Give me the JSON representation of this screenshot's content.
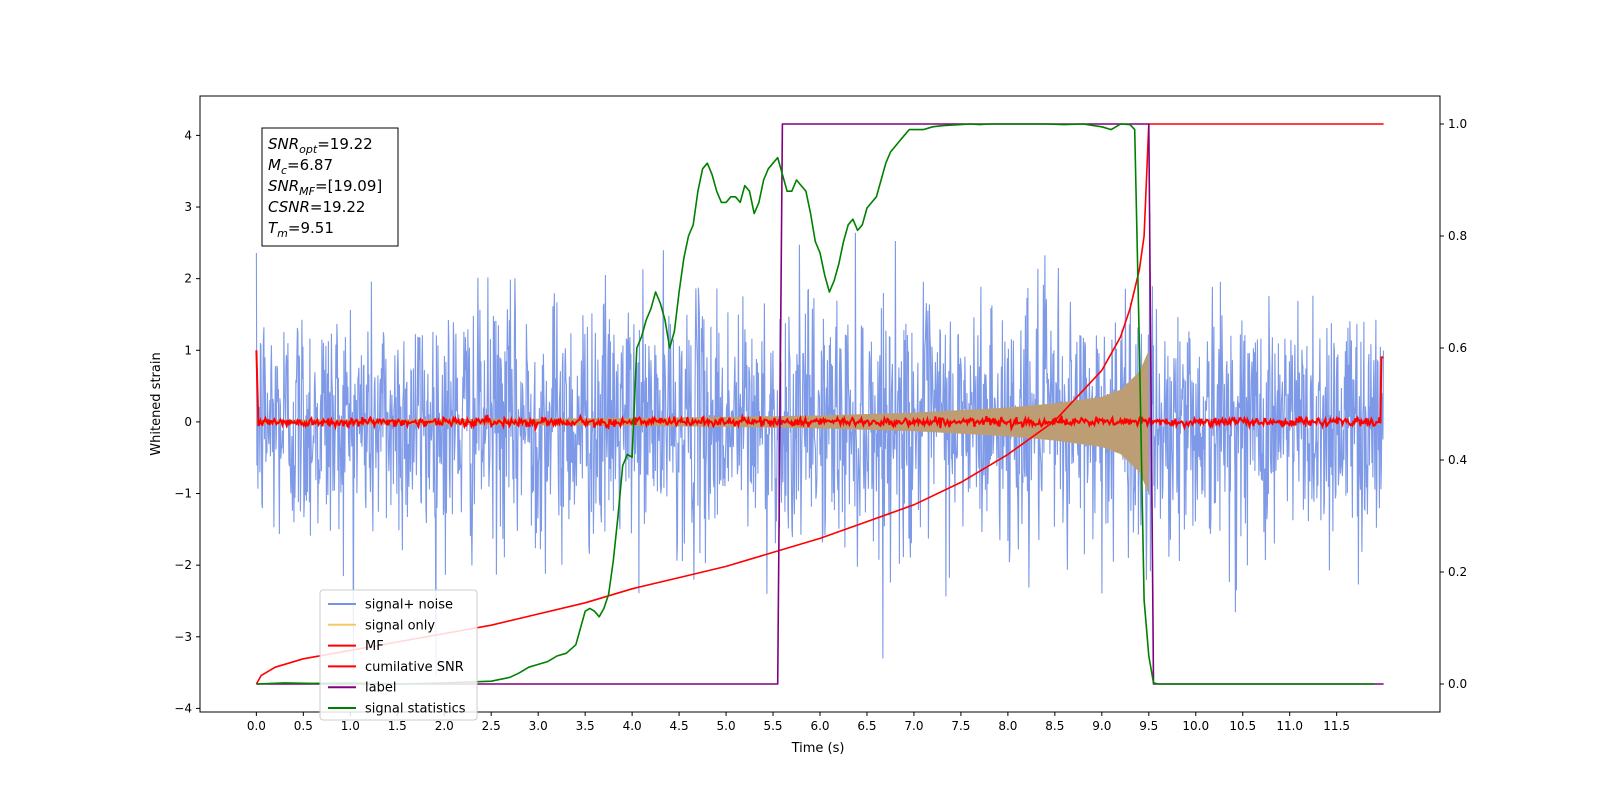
{
  "chart_data": {
    "type": "line",
    "xlabel": "Time (s)",
    "ylabel": "Whitened strain",
    "xlim": [
      -0.6,
      12.6
    ],
    "xticks": [
      0.0,
      0.5,
      1.0,
      1.5,
      2.0,
      2.5,
      3.0,
      3.5,
      4.0,
      4.5,
      5.0,
      5.5,
      6.0,
      6.5,
      7.0,
      7.5,
      8.0,
      8.5,
      9.0,
      9.5,
      10.0,
      10.5,
      11.0,
      11.5
    ],
    "xtick_labels": [
      "0.0",
      "0.5",
      "1.0",
      "1.5",
      "2.0",
      "2.5",
      "3.0",
      "3.5",
      "4.0",
      "4.5",
      "5.0",
      "5.5",
      "6.0",
      "6.5",
      "7.0",
      "7.5",
      "8.0",
      "8.5",
      "9.0",
      "9.5",
      "10.0",
      "10.5",
      "11.0",
      "11.5"
    ],
    "ylim_left": [
      -4.05,
      4.55
    ],
    "yticks_left": [
      -4,
      -3,
      -2,
      -1,
      0,
      1,
      2,
      3,
      4
    ],
    "ytick_labels_left": [
      "−4",
      "−3",
      "−2",
      "−1",
      "0",
      "1",
      "2",
      "3",
      "4"
    ],
    "ylim_right": [
      -0.05,
      1.05
    ],
    "yticks_right": [
      0.0,
      0.2,
      0.4,
      0.6,
      0.8,
      1.0
    ],
    "ytick_labels_right": [
      "0.0",
      "0.2",
      "0.4",
      "0.6",
      "0.8",
      "1.0"
    ],
    "grid": false,
    "legend_position": "bottom-left",
    "stats_box": [
      {
        "main": "SNR",
        "sub": "opt",
        "value": "=19.22"
      },
      {
        "main": "M",
        "sub": "c",
        "value": "=6.87"
      },
      {
        "main": "SNR",
        "sub": "MF",
        "value": "=[19.09]"
      },
      {
        "main": "CSNR",
        "sub": "",
        "value": "=19.22"
      },
      {
        "main": "T",
        "sub": "m",
        "value": "=9.51"
      }
    ],
    "series": [
      {
        "name": "signal+ noise",
        "axis": "left",
        "color": "#7693e6",
        "description_values": {
          "t_start": 0.0,
          "t_end": 12.0,
          "noise_std": 0.85,
          "envelope_start": 0.05,
          "envelope_peak": 1.0,
          "t_merger": 9.5
        }
      },
      {
        "name": "signal only",
        "axis": "left",
        "color": "#f5c866",
        "envelope": {
          "t": [
            0.0,
            1.0,
            2.0,
            3.0,
            4.0,
            5.0,
            6.0,
            7.0,
            8.0,
            8.5,
            9.0,
            9.2,
            9.4,
            9.5
          ],
          "amp": [
            0.03,
            0.035,
            0.04,
            0.045,
            0.055,
            0.07,
            0.09,
            0.13,
            0.2,
            0.26,
            0.35,
            0.45,
            0.7,
            1.0
          ]
        }
      },
      {
        "name": "MF",
        "axis": "left",
        "color": "#ff0000",
        "description_values": {
          "t_start": 0.0,
          "t_end": 12.0,
          "level": 0.0,
          "jitter": 0.06,
          "start_spike": 1.0,
          "end_spike": 0.9
        }
      },
      {
        "name": "cumilative SNR",
        "axis": "right",
        "color": "#ff0000",
        "x": [
          0.0,
          0.05,
          0.2,
          0.5,
          1.0,
          1.5,
          2.0,
          2.5,
          3.0,
          3.5,
          4.0,
          4.5,
          5.0,
          5.5,
          6.0,
          6.5,
          7.0,
          7.5,
          8.0,
          8.5,
          9.0,
          9.2,
          9.3,
          9.4,
          9.45,
          9.5,
          12.0
        ],
        "y": [
          0.0,
          0.015,
          0.03,
          0.045,
          0.06,
          0.075,
          0.09,
          0.105,
          0.125,
          0.145,
          0.17,
          0.19,
          0.21,
          0.235,
          0.26,
          0.29,
          0.32,
          0.36,
          0.41,
          0.47,
          0.56,
          0.62,
          0.67,
          0.74,
          0.8,
          1.0,
          1.0
        ]
      },
      {
        "name": "label",
        "axis": "right",
        "color": "#800080",
        "x": [
          0.0,
          5.55,
          5.6,
          9.5,
          9.55,
          12.0
        ],
        "y": [
          0.0,
          0.0,
          1.0,
          1.0,
          0.0,
          0.0
        ]
      },
      {
        "name": "signal statistics",
        "axis": "right",
        "color": "#008000",
        "x": [
          0.0,
          0.3,
          0.6,
          1.0,
          1.5,
          2.0,
          2.5,
          2.7,
          2.8,
          2.9,
          3.0,
          3.1,
          3.2,
          3.3,
          3.4,
          3.5,
          3.55,
          3.6,
          3.65,
          3.7,
          3.75,
          3.8,
          3.85,
          3.9,
          3.95,
          4.0,
          4.05,
          4.1,
          4.15,
          4.2,
          4.25,
          4.3,
          4.35,
          4.4,
          4.45,
          4.5,
          4.55,
          4.6,
          4.65,
          4.7,
          4.75,
          4.8,
          4.85,
          4.9,
          4.95,
          5.0,
          5.05,
          5.1,
          5.15,
          5.2,
          5.25,
          5.3,
          5.35,
          5.4,
          5.45,
          5.5,
          5.55,
          5.6,
          5.65,
          5.7,
          5.75,
          5.8,
          5.85,
          5.9,
          5.95,
          6.0,
          6.05,
          6.1,
          6.15,
          6.2,
          6.25,
          6.3,
          6.35,
          6.4,
          6.45,
          6.5,
          6.55,
          6.6,
          6.65,
          6.7,
          6.75,
          6.8,
          6.85,
          6.9,
          6.95,
          7.0,
          7.1,
          7.2,
          7.3,
          7.4,
          7.5,
          7.6,
          7.7,
          7.8,
          7.9,
          8.0,
          8.2,
          8.4,
          8.6,
          8.8,
          9.0,
          9.1,
          9.2,
          9.3,
          9.35,
          9.4,
          9.45,
          9.5,
          9.55,
          9.6,
          9.7,
          10.0,
          11.0,
          11.9
        ],
        "y": [
          0.0,
          0.002,
          0.001,
          0.002,
          0.0,
          0.002,
          0.005,
          0.012,
          0.02,
          0.03,
          0.035,
          0.04,
          0.05,
          0.055,
          0.07,
          0.13,
          0.135,
          0.13,
          0.12,
          0.135,
          0.16,
          0.22,
          0.3,
          0.39,
          0.41,
          0.405,
          0.6,
          0.62,
          0.65,
          0.67,
          0.7,
          0.68,
          0.65,
          0.6,
          0.63,
          0.7,
          0.76,
          0.8,
          0.82,
          0.88,
          0.92,
          0.93,
          0.91,
          0.88,
          0.86,
          0.86,
          0.87,
          0.87,
          0.86,
          0.89,
          0.88,
          0.84,
          0.86,
          0.9,
          0.92,
          0.93,
          0.94,
          0.91,
          0.88,
          0.88,
          0.9,
          0.89,
          0.88,
          0.84,
          0.79,
          0.77,
          0.73,
          0.7,
          0.72,
          0.75,
          0.79,
          0.82,
          0.83,
          0.81,
          0.82,
          0.85,
          0.86,
          0.87,
          0.9,
          0.93,
          0.95,
          0.96,
          0.97,
          0.98,
          0.99,
          0.99,
          0.99,
          0.995,
          0.997,
          0.998,
          0.999,
          1.0,
          0.999,
          1.0,
          1.0,
          1.0,
          1.0,
          1.0,
          0.999,
          1.0,
          0.995,
          0.99,
          1.0,
          0.999,
          0.99,
          0.6,
          0.15,
          0.05,
          0.002,
          0.0,
          0.0,
          0.0,
          0.0,
          0.0
        ]
      }
    ]
  },
  "legend": {
    "items": [
      {
        "label": "signal+ noise",
        "color": "#7693e6"
      },
      {
        "label": "signal only",
        "color": "#f5c866"
      },
      {
        "label": "MF",
        "color": "#ff0000"
      },
      {
        "label": "cumilative SNR",
        "color": "#ff0000"
      },
      {
        "label": "label",
        "color": "#800080"
      },
      {
        "label": "signal statistics",
        "color": "#008000"
      }
    ]
  }
}
